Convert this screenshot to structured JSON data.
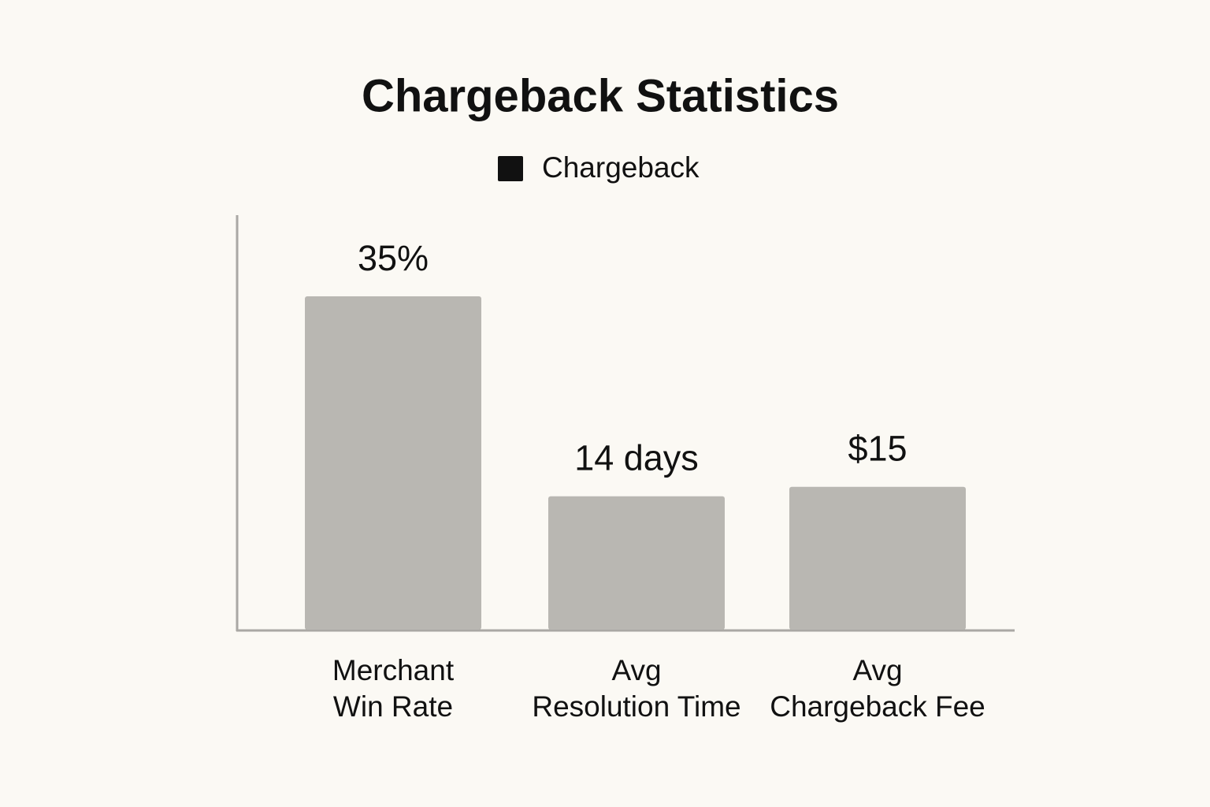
{
  "chart_data": {
    "type": "bar",
    "title": "Chargeback Statistics",
    "categories": [
      "Merchant\nWin Rate",
      "Avg\nResolution Time",
      "Avg\nChargeback Fee"
    ],
    "series": [
      {
        "name": "Chargeback",
        "color": "#b9b7b2",
        "values": [
          35,
          14,
          15
        ],
        "value_labels": [
          "35%",
          "14 days",
          "$15"
        ]
      }
    ]
  }
}
